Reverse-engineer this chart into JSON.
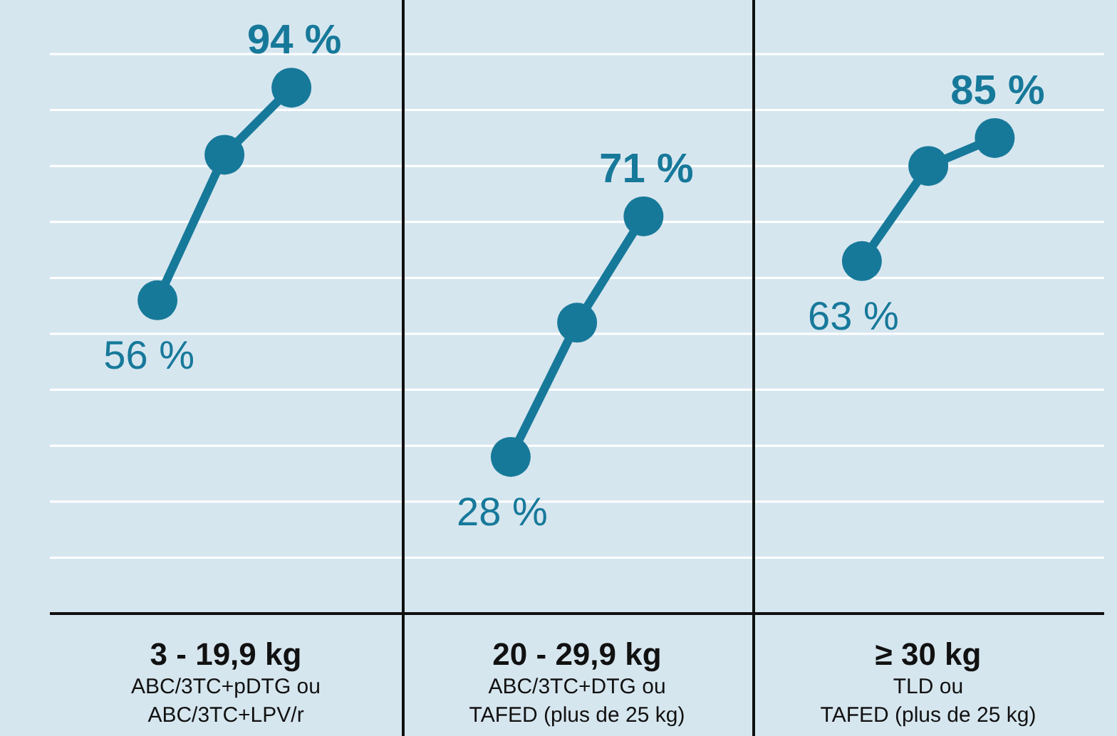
{
  "chart_data": [
    {
      "type": "line",
      "categories": [
        null,
        null,
        null
      ],
      "series": [
        {
          "color": "#17799a",
          "values": [
            56,
            82,
            94
          ],
          "value_labels": [
            "56 %",
            null,
            "94 %"
          ]
        }
      ],
      "ylim": [
        0,
        100
      ],
      "yticks": [
        {
          "value": 0,
          "label": null
        },
        {
          "value": 10,
          "label": null
        },
        {
          "value": 20,
          "label": null
        },
        {
          "value": 30,
          "label": null
        },
        {
          "value": 40,
          "label": null
        },
        {
          "value": 50,
          "label": null
        },
        {
          "value": 60,
          "label": null
        },
        {
          "value": 70,
          "label": null
        },
        {
          "value": 80,
          "label": null
        },
        {
          "value": 90,
          "label": null
        },
        {
          "value": 100,
          "label": null
        }
      ],
      "grid": "y",
      "tick_labels": false,
      "marker": "circle",
      "line_style": "solid",
      "xlabel": "3 - 19,9 kg",
      "annotations": [
        "ABC/3TC+pDTG ou",
        "ABC/3TC+LPV/r"
      ]
    },
    {
      "type": "line",
      "categories": [
        null,
        null,
        null
      ],
      "series": [
        {
          "color": "#17799a",
          "values": [
            28,
            52,
            71
          ],
          "value_labels": [
            "28 %",
            null,
            "71 %"
          ]
        }
      ],
      "ylim": [
        0,
        100
      ],
      "yticks": [
        {
          "value": 0,
          "label": null
        },
        {
          "value": 10,
          "label": null
        },
        {
          "value": 20,
          "label": null
        },
        {
          "value": 30,
          "label": null
        },
        {
          "value": 40,
          "label": null
        },
        {
          "value": 50,
          "label": null
        },
        {
          "value": 60,
          "label": null
        },
        {
          "value": 70,
          "label": null
        },
        {
          "value": 80,
          "label": null
        },
        {
          "value": 90,
          "label": null
        },
        {
          "value": 100,
          "label": null
        }
      ],
      "grid": "y",
      "tick_labels": false,
      "marker": "circle",
      "line_style": "solid",
      "xlabel": "20 - 29,9 kg",
      "annotations": [
        "ABC/3TC+DTG ou",
        "TAFED (plus de 25 kg)"
      ]
    },
    {
      "type": "line",
      "categories": [
        null,
        null,
        null
      ],
      "series": [
        {
          "color": "#17799a",
          "values": [
            63,
            80,
            85
          ],
          "value_labels": [
            "63 %",
            null,
            "85 %"
          ]
        }
      ],
      "ylim": [
        0,
        100
      ],
      "yticks": [
        {
          "value": 0,
          "label": null
        },
        {
          "value": 10,
          "label": null
        },
        {
          "value": 20,
          "label": null
        },
        {
          "value": 30,
          "label": null
        },
        {
          "value": 40,
          "label": null
        },
        {
          "value": 50,
          "label": null
        },
        {
          "value": 60,
          "label": null
        },
        {
          "value": 70,
          "label": null
        },
        {
          "value": 80,
          "label": null
        },
        {
          "value": 90,
          "label": null
        },
        {
          "value": 100,
          "label": null
        }
      ],
      "grid": "y",
      "tick_labels": false,
      "marker": "circle",
      "line_style": "solid",
      "xlabel": "≥ 30 kg",
      "annotations": [
        "TLD ou",
        "TAFED (plus de 25 kg)"
      ]
    }
  ]
}
